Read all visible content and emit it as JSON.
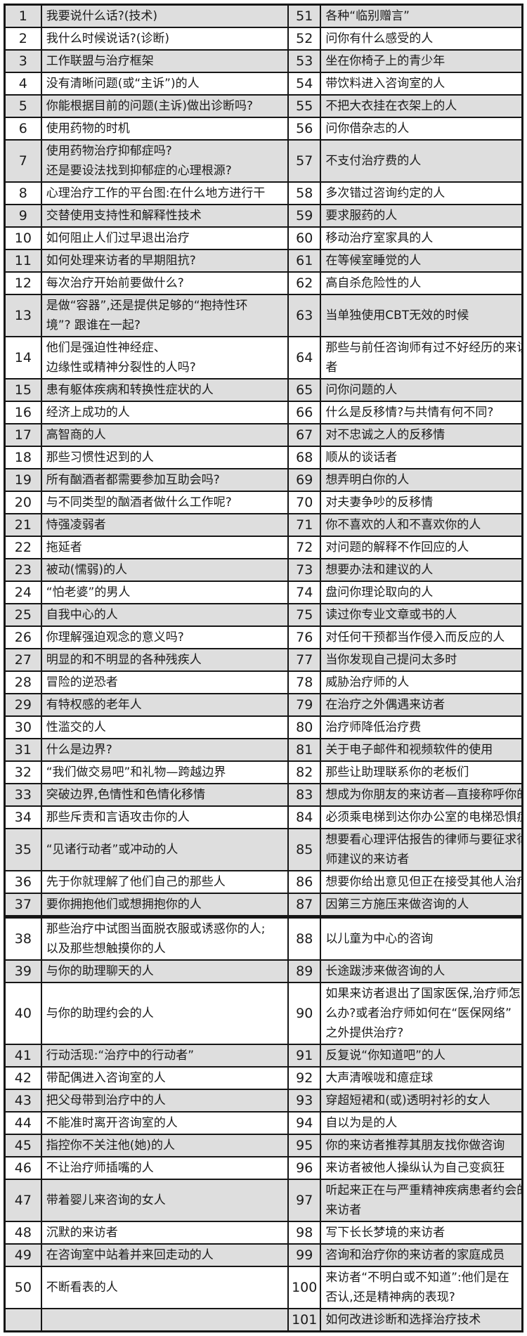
{
  "colors": {
    "row-shade": "#dedede",
    "row-plain": "#ffffff",
    "border": "#161616",
    "text": "#1b1b1b",
    "bg": "#ffffff"
  },
  "table": {
    "description": "numbered-topic-list-two-columns",
    "section_break_before_visual_row": 38,
    "rows": [
      {
        "ln": "1",
        "lt": "我要说什么话?(技术)",
        "rn": "51",
        "rt": "各种“临别赠言”"
      },
      {
        "ln": "2",
        "lt": "我什么时候说话?(诊断)",
        "rn": "52",
        "rt": "问你有什么感受的人"
      },
      {
        "ln": "3",
        "lt": "工作联盟与治疗框架",
        "rn": "53",
        "rt": "坐在你椅子上的青少年"
      },
      {
        "ln": "4",
        "lt": "没有清晰问题(或“主诉”)的人",
        "rn": "54",
        "rt": "带饮料进入咨询室的人"
      },
      {
        "ln": "5",
        "lt": "你能根据目前的问题(主诉)做出诊断吗?",
        "rn": "55",
        "rt": "不把大衣挂在衣架上的人"
      },
      {
        "ln": "6",
        "lt": "使用药物的时机",
        "rn": "56",
        "rt": "问你借杂志的人"
      },
      {
        "ln": "7",
        "lt": "使用药物治疗抑郁症吗?\n还是要设法找到抑郁症的心理根源?",
        "rn": "57",
        "rt": "不支付治疗费的人"
      },
      {
        "ln": "8",
        "lt": "心理治疗工作的平台图:在什么地方进行干",
        "rn": "58",
        "rt": "多次错过咨询约定的人"
      },
      {
        "ln": "9",
        "lt": "交替使用支持性和解释性技术",
        "rn": "59",
        "rt": "要求服药的人"
      },
      {
        "ln": "10",
        "lt": "如何阻止人们过早退出治疗",
        "rn": "60",
        "rt": "移动治疗室家具的人"
      },
      {
        "ln": "11",
        "lt": "如何处理来访者的早期阻抗?",
        "rn": "61",
        "rt": "在等候室睡觉的人"
      },
      {
        "ln": "12",
        "lt": "每次治疗开始前要做什么?",
        "rn": "62",
        "rt": "高自杀危险性的人"
      },
      {
        "ln": "13",
        "lt": "是做“容器”,还是提供足够的“抱持性环\n境”? 跟谁在一起?",
        "rn": "63",
        "rt": "当单独使用CBT无效的时候"
      },
      {
        "ln": "14",
        "lt": "他们是强迫性神经症、\n边缘性或精神分裂性的人吗?",
        "rn": "64",
        "rt": "那些与前任咨询师有过不好经历的来访\n者"
      },
      {
        "ln": "15",
        "lt": "患有躯体疾病和转换性症状的人",
        "rn": "65",
        "rt": "问你问题的人"
      },
      {
        "ln": "16",
        "lt": "经济上成功的人",
        "rn": "66",
        "rt": "什么是反移情?与共情有何不同?"
      },
      {
        "ln": "17",
        "lt": "高智商的人",
        "rn": "67",
        "rt": "对不忠诚之人的反移情"
      },
      {
        "ln": "18",
        "lt": "那些习惯性迟到的人",
        "rn": "68",
        "rt": "顺从的谈话者"
      },
      {
        "ln": "19",
        "lt": "所有酗酒者都需要参加互助会吗?",
        "rn": "69",
        "rt": "想弄明白你的人"
      },
      {
        "ln": "20",
        "lt": "与不同类型的酗酒者做什么工作呢?",
        "rn": "70",
        "rt": "对夫妻争吵的反移情"
      },
      {
        "ln": "21",
        "lt": "恃强凌弱者",
        "rn": "71",
        "rt": "你不喜欢的人和不喜欢你的人"
      },
      {
        "ln": "22",
        "lt": "拖延者",
        "rn": "72",
        "rt": "对问题的解释不作回应的人"
      },
      {
        "ln": "23",
        "lt": "被动(懦弱)的人",
        "rn": "73",
        "rt": "想要办法和建议的人"
      },
      {
        "ln": "24",
        "lt": "“怕老婆”的男人",
        "rn": "74",
        "rt": "盘问你理论取向的人"
      },
      {
        "ln": "25",
        "lt": "自我中心的人",
        "rn": "75",
        "rt": "读过你专业文章或书的人"
      },
      {
        "ln": "26",
        "lt": "你理解强迫观念的意义吗?",
        "rn": "76",
        "rt": "对任何干预都当作侵入而反应的人"
      },
      {
        "ln": "27",
        "lt": "明显的和不明显的各种残疾人",
        "rn": "77",
        "rt": "当你发现自己提问太多时"
      },
      {
        "ln": "28",
        "lt": "冒险的逆恐者",
        "rn": "78",
        "rt": "威胁治疗师的人"
      },
      {
        "ln": "29",
        "lt": "有特权感的老年人",
        "rn": "79",
        "rt": "在治疗之外偶遇来访者"
      },
      {
        "ln": "30",
        "lt": "性滥交的人",
        "rn": "80",
        "rt": "治疗师降低治疗费"
      },
      {
        "ln": "31",
        "lt": "什么是边界?",
        "rn": "81",
        "rt": "关于电子邮件和视频软件的使用"
      },
      {
        "ln": "32",
        "lt": "“我们做交易吧”和礼物—跨越边界",
        "rn": "82",
        "rt": "那些让助理联系你的老板们"
      },
      {
        "ln": "33",
        "lt": "突破边界,色情性和色情化移情",
        "rn": "83",
        "rt": "想成为你朋友的来访者—直接称呼你的"
      },
      {
        "ln": "34",
        "lt": "那些斥责和言语攻击你的人",
        "rn": "84",
        "rt": "必须乘电梯到达你办公室的电梯恐惧症"
      },
      {
        "ln": "35",
        "lt": "“见诸行动者”或冲动的人",
        "rn": "85",
        "rt": "想要看心理评估报告的律师与要征求律\n师建议的来访者"
      },
      {
        "ln": "36",
        "lt": "先于你就理解了他们自己的那些人",
        "rn": "86",
        "rt": "想要你给出意见但正在接受其他人治疗"
      },
      {
        "ln": "37",
        "lt": "要你拥抱他们或想拥抱你的人",
        "rn": "87",
        "rt": "因第三方施压来做咨询的人"
      },
      {
        "ln": "38",
        "lt": "那些治疗中试图当面脱衣服或诱惑你的人;\n以及那些想触摸你的人",
        "rn": "88",
        "rt": "以儿童为中心的咨询"
      },
      {
        "ln": "39",
        "lt": "与你的助理聊天的人",
        "rn": "89",
        "rt": "长途跋涉来做咨询的人"
      },
      {
        "ln": "40",
        "lt": "与你的助理约会的人",
        "rn": "90",
        "rt": "如果来访者退出了国家医保,治疗师怎\n么办?或者治疗师如何在“医保网络”\n之外提供治疗?"
      },
      {
        "ln": "41",
        "lt": "行动活现:“治疗中的行动者”",
        "rn": "91",
        "rt": "反复说“你知道吧”的人"
      },
      {
        "ln": "42",
        "lt": "带配偶进入咨询室的人",
        "rn": "92",
        "rt": "大声清喉咙和癔症球"
      },
      {
        "ln": "43",
        "lt": "把父母带到治疗中的人",
        "rn": "93",
        "rt": "穿超短裙和(或)透明衬衫的女人"
      },
      {
        "ln": "44",
        "lt": "不能准时离开咨询室的人",
        "rn": "94",
        "rt": "自以为是的人"
      },
      {
        "ln": "45",
        "lt": "指控你不关注他(她)的人",
        "rn": "95",
        "rt": "你的来访者推荐其朋友找你做咨询"
      },
      {
        "ln": "46",
        "lt": "不让治疗师插嘴的人",
        "rn": "96",
        "rt": "来访者被他人操纵认为自己变疯狂"
      },
      {
        "ln": "47",
        "lt": "带着婴儿来咨询的女人",
        "rn": "97",
        "rt": "听起来正在与严重精神疾病患者约会的\n来访者"
      },
      {
        "ln": "48",
        "lt": "沉默的来访者",
        "rn": "98",
        "rt": "写下长长梦境的来访者"
      },
      {
        "ln": "49",
        "lt": "在咨询室中站着并来回走动的人",
        "rn": "99",
        "rt": "咨询和治疗你的来访者的家庭成员"
      },
      {
        "ln": "50",
        "lt": "不断看表的人",
        "rn": "100",
        "rt": "来访者“不明白或不知道”:他们是在\n否认,还是精神病的表现?"
      },
      {
        "ln": "",
        "lt": "",
        "rn": "101",
        "rt": "如何改进诊断和选择治疗技术"
      }
    ]
  }
}
